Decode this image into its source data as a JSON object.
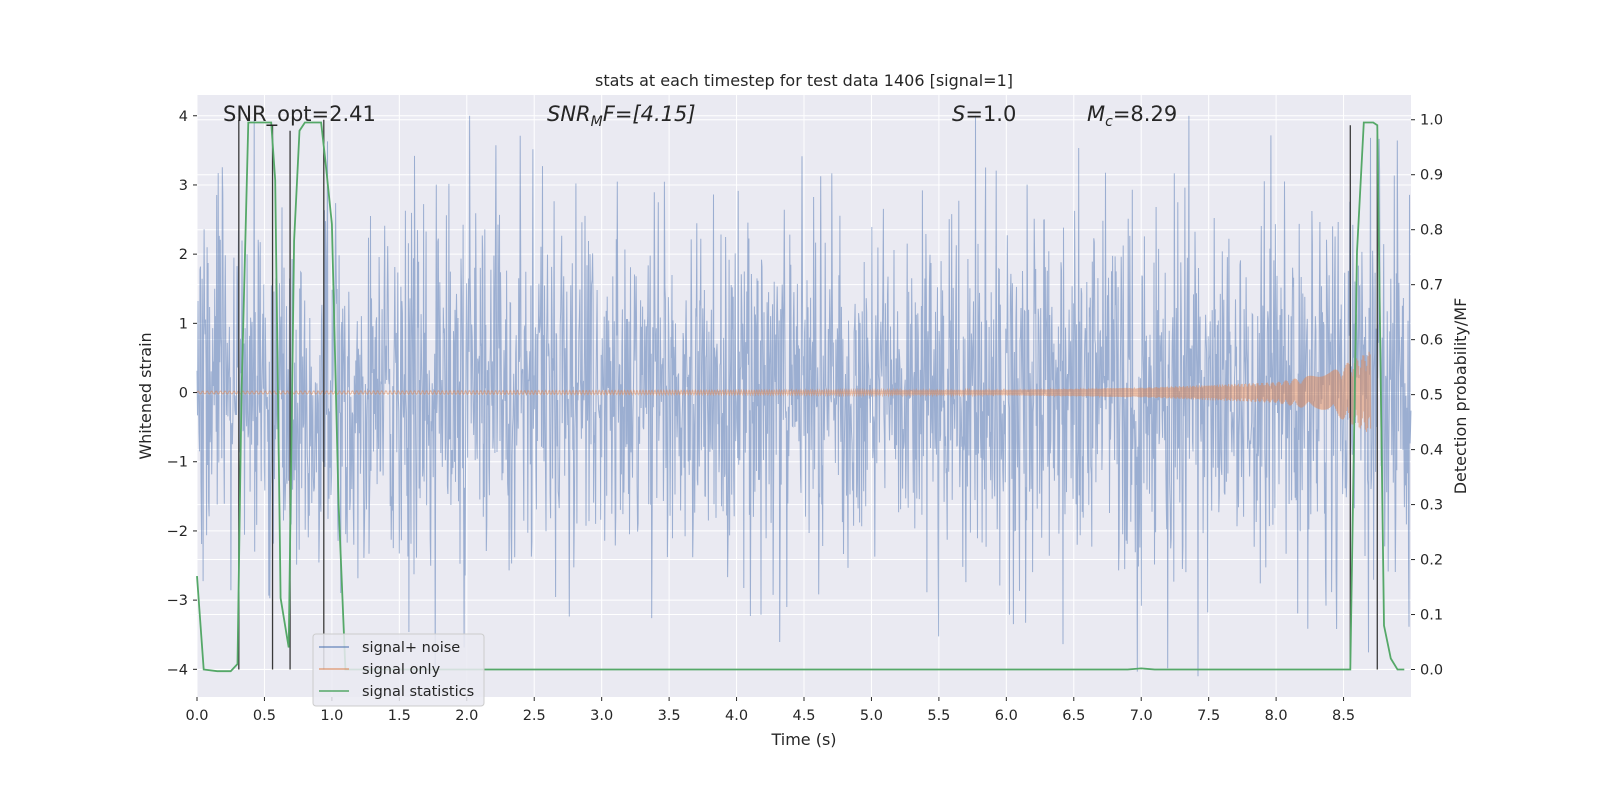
{
  "chart_data": {
    "type": "line",
    "title": "stats at each timestep for test data 1406 [signal=1]",
    "xlabel": "Time (s)",
    "ylabel": "Whitened strain",
    "ylabel_right": "Detection probability/MF",
    "xlim": [
      0.0,
      9.0
    ],
    "ylim": [
      -4.4,
      4.3
    ],
    "ylim_right": [
      -0.05,
      1.045
    ],
    "x_ticks": [
      "0.0",
      "0.5",
      "1.0",
      "1.5",
      "2.0",
      "2.5",
      "3.0",
      "3.5",
      "4.0",
      "4.5",
      "5.0",
      "5.5",
      "6.0",
      "6.5",
      "7.0",
      "7.5",
      "8.0",
      "8.5"
    ],
    "y_ticks": [
      "4",
      "3",
      "2",
      "1",
      "0",
      "−1",
      "−2",
      "−3",
      "−4"
    ],
    "y2_ticks": [
      "1.0",
      "0.9",
      "0.8",
      "0.7",
      "0.6",
      "0.5",
      "0.4",
      "0.3",
      "0.2",
      "0.1",
      "0.0"
    ],
    "grid": true,
    "legend_position": "lower-left",
    "annotations": {
      "snr_opt": "SNR_opt=2.41",
      "snr_mf_base": "SNR",
      "snr_mf_sub": "M",
      "snr_mf_rest": "F=[4.15]",
      "s_italic": "S",
      "s_rest": "=1.0",
      "mc_italic": "M",
      "mc_sub": "c",
      "mc_rest": "=8.29"
    },
    "series": [
      {
        "name": "signal+ noise",
        "color": "#4c72b0",
        "opacity": 0.5,
        "description": "whitened noisy strain, approx. Gaussian, spikes reaching about ±4"
      },
      {
        "name": "signal only",
        "color": "#dd8452",
        "opacity": 0.5,
        "chirp_envelope": {
          "x": [
            0.0,
            6.0,
            7.0,
            8.0,
            8.4,
            8.6,
            8.7
          ],
          "amp": [
            0.02,
            0.04,
            0.07,
            0.15,
            0.3,
            0.5,
            0.6
          ]
        }
      },
      {
        "name": "signal statistics",
        "color": "#55a868",
        "axis": "right",
        "x": [
          0.0,
          0.05,
          0.15,
          0.25,
          0.3,
          0.33,
          0.38,
          0.55,
          0.58,
          0.62,
          0.68,
          0.72,
          0.76,
          0.8,
          0.92,
          0.95,
          1.0,
          1.05,
          1.1,
          6.9,
          7.0,
          7.1,
          8.55,
          8.6,
          8.65,
          8.72,
          8.75,
          8.8,
          8.85,
          8.9,
          8.95
        ],
        "values": [
          0.17,
          0.0,
          -0.003,
          -0.003,
          0.01,
          0.5,
          0.995,
          0.995,
          0.89,
          0.13,
          0.04,
          0.78,
          0.98,
          0.995,
          0.995,
          0.93,
          0.81,
          0.3,
          0.0,
          0.0,
          0.002,
          0.0,
          0.0,
          0.76,
          0.995,
          0.995,
          0.99,
          0.08,
          0.02,
          0.0,
          0.0
        ]
      }
    ],
    "vertical_markers": {
      "color": "#3a3a3a",
      "lines": [
        {
          "x": 0.31,
          "y0": 0.0,
          "y1": 1.0
        },
        {
          "x": 0.56,
          "y0": 0.0,
          "y1": 0.99
        },
        {
          "x": 0.69,
          "y0": 0.0,
          "y1": 0.98
        },
        {
          "x": 0.94,
          "y0": 0.0,
          "y1": 1.0
        },
        {
          "x": 8.55,
          "y0": 0.0,
          "y1": 0.99
        },
        {
          "x": 8.75,
          "y0": 0.0,
          "y1": 0.99
        }
      ]
    }
  }
}
